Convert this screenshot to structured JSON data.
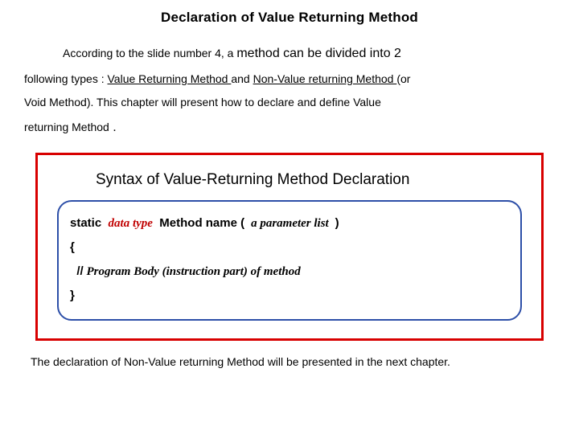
{
  "title": "Declaration of Value Returning Method",
  "para": {
    "lead_in": "According to the slide number 4, a ",
    "larger1": "method can be divided into 2",
    "line2a": "following types : ",
    "u1": "Value Returning Method ",
    "mid": "and ",
    "u2": "Non-Value returning Method ",
    "line2b": "(or",
    "line3": "Void Method). This chapter will present how to declare and define Value",
    "line4a": "returning Method",
    "dot": " ."
  },
  "syntax": {
    "heading": "Syntax of  Value-Returning Method Declaration",
    "static": "static",
    "datatype": "data type",
    "methodname": "Method name",
    "lparen": "(",
    "paramlist": "a parameter list",
    "rparen": ")",
    "openbrace": "{",
    "slashes": "//",
    "comment": " Program Body (instruction part) of method",
    "closebrace": "}"
  },
  "footer": "The declaration of Non-Value returning Method will be presented in the next chapter.",
  "colors": {
    "red_border": "#d80000",
    "blue_border": "#2d4fa8",
    "datatype_color": "#c00000",
    "text_color": "#000000",
    "background": "#ffffff"
  },
  "typography": {
    "title_fontsize": 17,
    "body_fontsize": 14,
    "syntax_title_fontsize": 19,
    "codebox_fontsize": 15,
    "line_height": 2.1
  }
}
